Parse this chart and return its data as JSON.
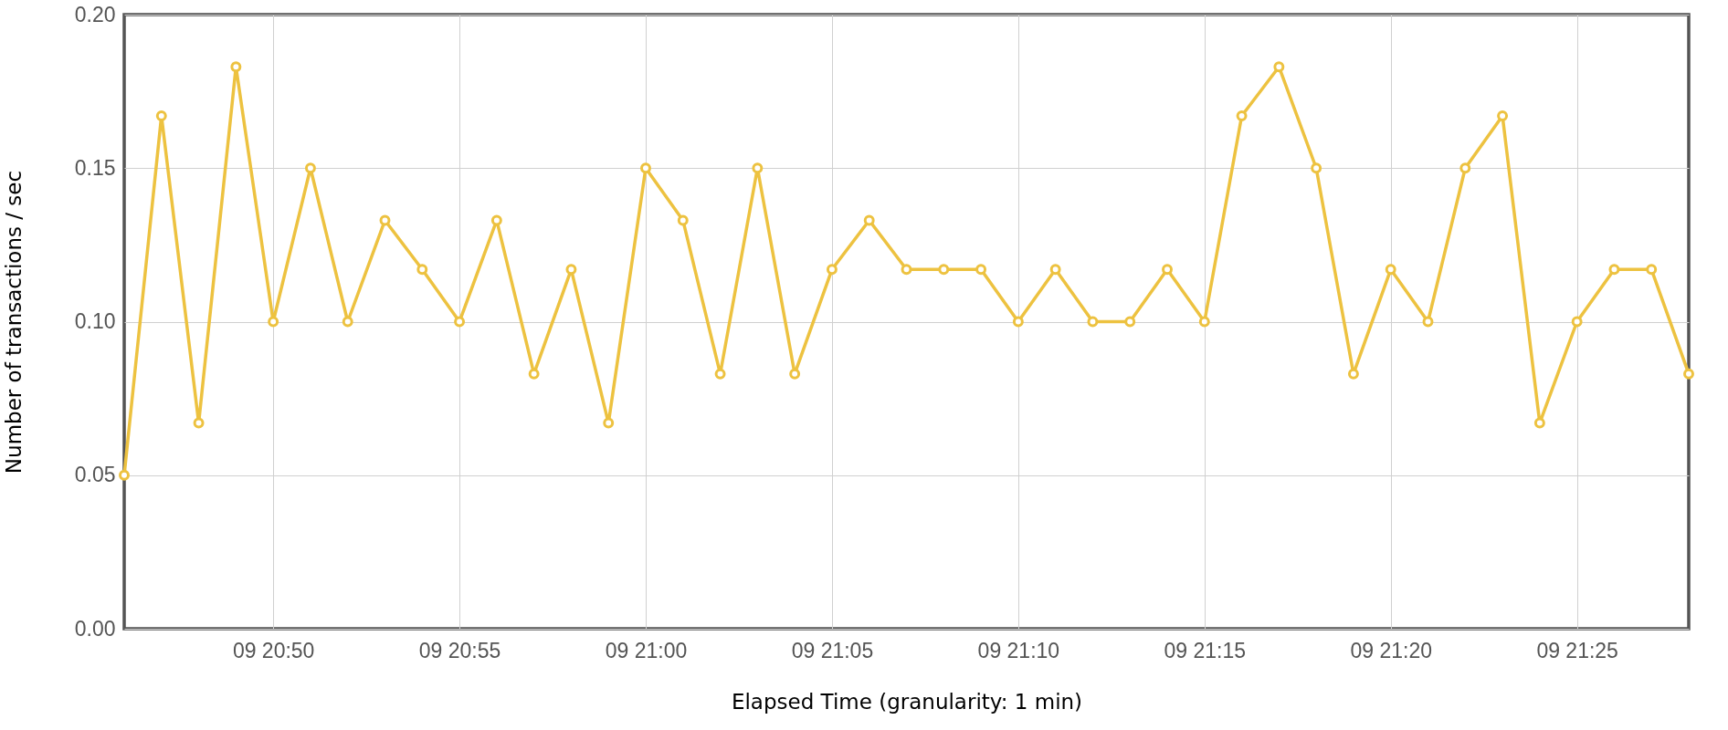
{
  "chart_data": {
    "type": "line",
    "xlabel": "Elapsed Time (granularity: 1 min)",
    "ylabel": "Number of transactions / sec",
    "categories": [
      null,
      null,
      null,
      null,
      "09 20:50",
      null,
      null,
      null,
      null,
      "09 20:55",
      null,
      null,
      null,
      null,
      "09 21:00",
      null,
      null,
      null,
      null,
      "09 21:05",
      null,
      null,
      null,
      null,
      "09 21:10",
      null,
      null,
      null,
      null,
      "09 21:15",
      null,
      null,
      null,
      null,
      "09 21:20",
      null,
      null,
      null,
      null,
      "09 21:25",
      null,
      null,
      null
    ],
    "series": [
      {
        "color": "#edc240",
        "values": [
          0.05,
          0.167,
          0.067,
          0.183,
          0.1,
          0.15,
          0.1,
          0.133,
          0.117,
          0.1,
          0.133,
          0.083,
          0.117,
          0.067,
          0.15,
          0.133,
          0.083,
          0.15,
          0.083,
          0.117,
          0.133,
          0.117,
          0.117,
          0.117,
          0.1,
          0.117,
          0.1,
          0.1,
          0.117,
          0.1,
          0.167,
          0.183,
          0.15,
          0.083,
          0.117,
          0.1,
          0.15,
          0.167,
          0.067,
          0.1,
          0.117,
          0.117,
          0.083
        ]
      }
    ],
    "ylim": [
      0,
      0.2
    ],
    "yticks": [
      {
        "value": 0,
        "label": "0.00"
      },
      {
        "value": 0.05,
        "label": "0.05"
      },
      {
        "value": 0.1,
        "label": "0.10"
      },
      {
        "value": 0.15,
        "label": "0.15"
      },
      {
        "value": 0.2,
        "label": "0.20"
      }
    ],
    "grid": true,
    "marker": "circle"
  }
}
